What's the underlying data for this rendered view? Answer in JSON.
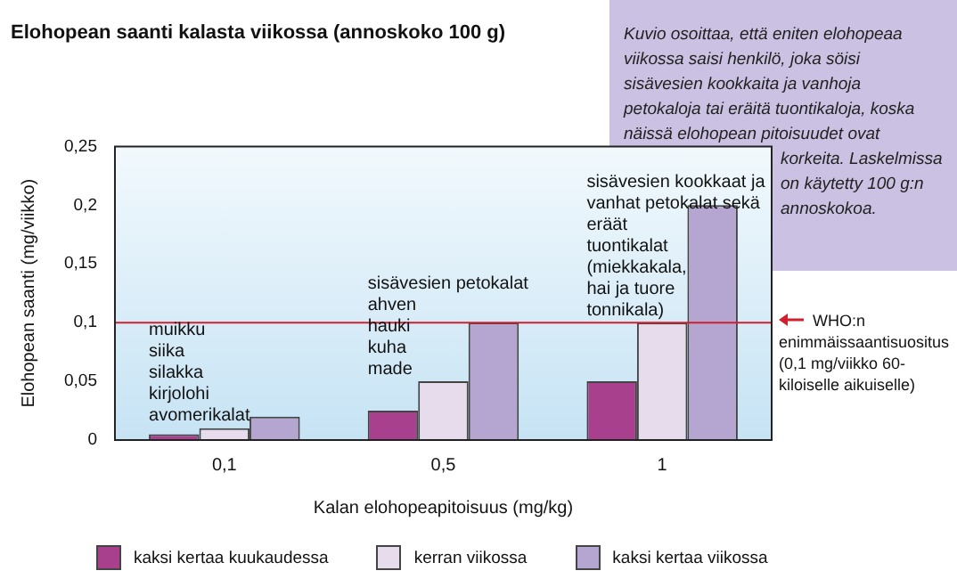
{
  "chart_data": {
    "type": "bar",
    "title": "Elohopean saanti kalasta viikossa (annoskoko 100 g)",
    "xlabel": "Kalan elohopeapitoisuus (mg/kg)",
    "ylabel": "Elohopean saanti (mg/viikko)",
    "categories": [
      "0,1",
      "0,5",
      "1"
    ],
    "series": [
      {
        "name": "kaksi kertaa kuukaudessa",
        "color": "#a8408e",
        "values": [
          0.005,
          0.025,
          0.05
        ]
      },
      {
        "name": "kerran viikossa",
        "color": "#e6dcec",
        "values": [
          0.01,
          0.05,
          0.1
        ]
      },
      {
        "name": "kaksi kertaa viikossa",
        "color": "#b4a6d0",
        "values": [
          0.02,
          0.1,
          0.2
        ]
      }
    ],
    "ylim": [
      0,
      0.25
    ],
    "yticks": [
      {
        "value": 0,
        "label": "0"
      },
      {
        "value": 0.05,
        "label": "0,05"
      },
      {
        "value": 0.1,
        "label": "0,1"
      },
      {
        "value": 0.15,
        "label": "0,15"
      },
      {
        "value": 0.2,
        "label": "0,2"
      },
      {
        "value": 0.25,
        "label": "0,25"
      }
    ],
    "grid": false,
    "legend": "bottom",
    "ref_lines": [
      {
        "axis": "y",
        "value": 0.1,
        "label": "WHO:n enimmäissaantisuositus (0,1 mg/viikko 60-kiloiselle aikuiselle)",
        "color": "#d02030"
      }
    ],
    "annotations": [
      "muikku\nsiika\nsilakka\nkirjolohi\navomerikalat",
      "sisävesien petokalat\nahven\nhauki\nkuha\nmade",
      "sisävesien kookkaat ja\nvanhat petokalat sekä\neräät\ntuontikalat\n(miekkakala,\nhai ja tuore\ntonnikala)",
      "Kuvio osoittaa, että eniten elohopeaa viikossa saisi henkilö, joka söisi sisävesien kookkaita ja vanhoja petokaloja tai eräitä tuontikaloja, koska näissä elohopean pitoisuudet ovat korkeita. Laskelmissa on käytetty 100 g:n annoskokoa."
    ]
  }
}
